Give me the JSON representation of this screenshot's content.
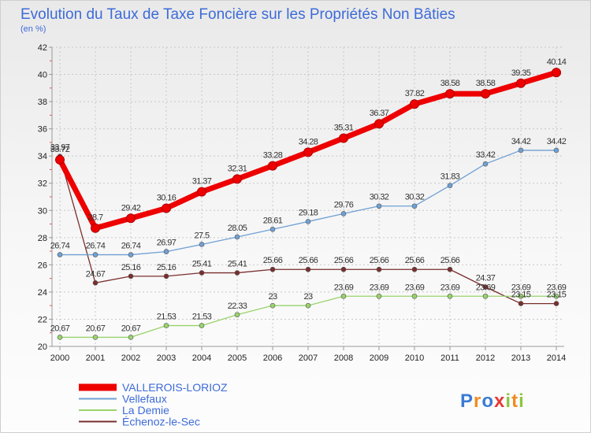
{
  "chart_data": {
    "type": "line",
    "title": "Evolution du Taux de Taxe Foncière sur les Propriétés Non Bâties",
    "subtitle": "(en %)",
    "x": [
      "2000",
      "2001",
      "2002",
      "2003",
      "2004",
      "2005",
      "2006",
      "2007",
      "2008",
      "2009",
      "2010",
      "2011",
      "2012",
      "2013",
      "2014"
    ],
    "ylim": [
      20,
      42
    ],
    "yticks": [
      20,
      22,
      24,
      26,
      28,
      30,
      32,
      34,
      36,
      38,
      40,
      42
    ],
    "grid": true,
    "legend_position": "bottom-left",
    "series": [
      {
        "name": "VALLEROIS-LORIOZ",
        "color": "#ee0000",
        "labels": [
          "33.72",
          "28.7",
          "29.42",
          "30.16",
          "31.37",
          "32.31",
          "33.28",
          "34.28",
          "35.31",
          "36.37",
          "37.82",
          "38.58",
          "38.58",
          "39.35",
          "40.14"
        ],
        "values": [
          33.72,
          28.7,
          29.42,
          30.16,
          31.37,
          32.31,
          33.28,
          34.28,
          35.31,
          36.37,
          37.82,
          38.58,
          38.58,
          39.35,
          40.14
        ]
      },
      {
        "name": "Vellefaux",
        "color": "#6fa0d3",
        "labels": [
          "26.74",
          "26.74",
          "26.74",
          "26.97",
          "27.5",
          "28.05",
          "28.61",
          "29.18",
          "29.76",
          "30.32",
          "30.32",
          "31.83",
          "33.42",
          "34.42",
          "34.42"
        ],
        "values": [
          26.74,
          26.74,
          26.74,
          26.97,
          27.5,
          28.05,
          28.61,
          29.18,
          29.76,
          30.32,
          30.32,
          31.83,
          33.42,
          34.42,
          34.42
        ]
      },
      {
        "name": "La Demie",
        "color": "#99d36b",
        "labels": [
          "20.67",
          "20.67",
          "20.67",
          "21.53",
          "21.53",
          "22.33",
          "23",
          "23",
          "23.69",
          "23.69",
          "23.69",
          "23.69",
          "23.69",
          "23.69",
          "23.69"
        ],
        "values": [
          20.67,
          20.67,
          20.67,
          21.53,
          21.53,
          22.33,
          23,
          23,
          23.69,
          23.69,
          23.69,
          23.69,
          23.69,
          23.69,
          23.69
        ]
      },
      {
        "name": "Échenoz-le-Sec",
        "color": "#7a2e2e",
        "labels": [
          "33.97",
          "24.67",
          "25.16",
          "25.16",
          "25.41",
          "25.41",
          "25.66",
          "25.66",
          "25.66",
          "25.66",
          "25.66",
          "25.66",
          "24.37",
          "23.15",
          "23.15"
        ],
        "values": [
          33.97,
          24.67,
          25.16,
          25.16,
          25.41,
          25.41,
          25.66,
          25.66,
          25.66,
          25.66,
          25.66,
          25.66,
          24.37,
          23.15,
          23.15
        ]
      }
    ]
  },
  "brand": {
    "text": "Proxiti",
    "letters": [
      "P",
      "r",
      "o",
      "x",
      "i",
      "t",
      "i"
    ],
    "colors": [
      "#3a7bd5",
      "#f08a24",
      "#3a7bd5",
      "#e53935",
      "#8cc63f",
      "#f08a24",
      "#8cc63f"
    ]
  }
}
